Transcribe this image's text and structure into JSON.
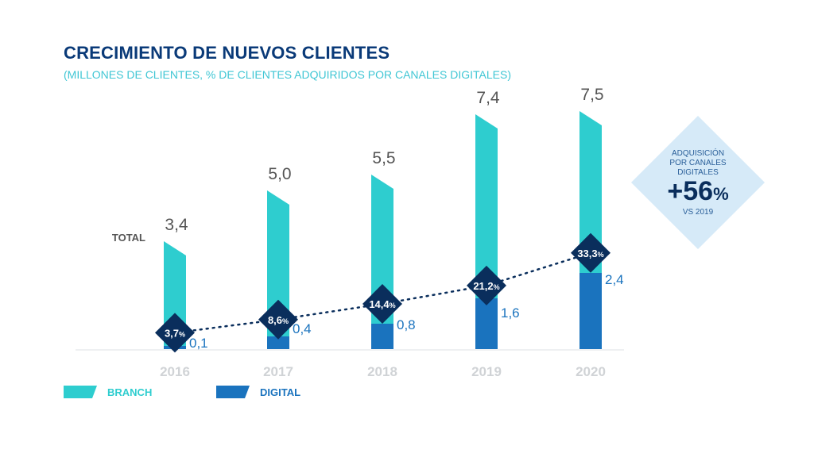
{
  "chart_data": {
    "type": "bar",
    "title": "CRECIMIENTO DE NUEVOS CLIENTES",
    "subtitle": "(MILLONES DE CLIENTES, % DE CLIENTES ADQUIRIDOS POR CANALES DIGITALES)",
    "categories": [
      "2016",
      "2017",
      "2018",
      "2019",
      "2020"
    ],
    "stacked": true,
    "total_label": "TOTAL",
    "totals": [
      "3,4",
      "5,0",
      "5,5",
      "7,4",
      "7,5"
    ],
    "total_values": [
      3.4,
      5.0,
      5.5,
      7.4,
      7.5
    ],
    "series": [
      {
        "name": "BRANCH",
        "color": "#2ecdcf",
        "values": [
          3.3,
          4.6,
          4.7,
          5.8,
          5.1
        ]
      },
      {
        "name": "DIGITAL",
        "color": "#1a73be",
        "values": [
          0.1,
          0.4,
          0.8,
          1.6,
          2.4
        ],
        "labels": [
          "0,1",
          "0,4",
          "0,8",
          "1,6",
          "2,4"
        ]
      }
    ],
    "digital_share": {
      "values": [
        3.7,
        8.6,
        14.4,
        21.2,
        33.3
      ],
      "labels": [
        "3,7",
        "8,6",
        "14,4",
        "21,2",
        "33,3"
      ],
      "unit": "%",
      "marker_color": "#0a2e5c",
      "line_style": "dotted"
    },
    "callout": {
      "line1": "ADQUISICIÓN",
      "line2": "POR CANALES",
      "line3": "DIGITALES",
      "value": "+56",
      "unit": "%",
      "note": "VS 2019",
      "color": "#d6eaf8"
    },
    "legend_placement": "bottom-left",
    "grid": false
  }
}
